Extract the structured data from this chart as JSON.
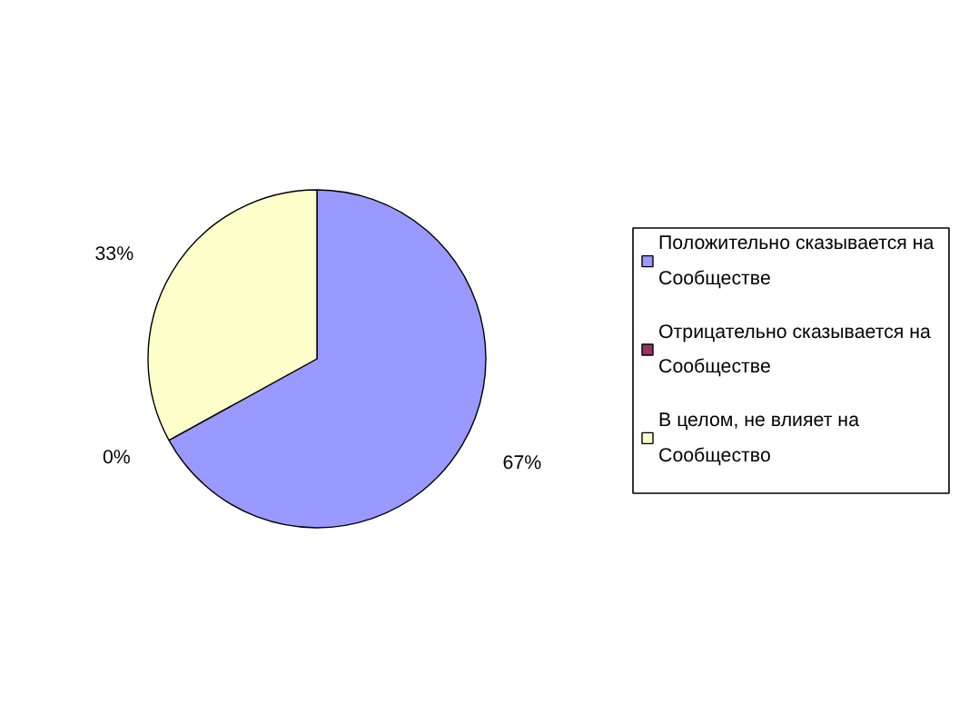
{
  "chart_data": {
    "type": "pie",
    "categories": [
      "Положительно сказывается на Сообществе",
      "Отрицательно сказывается на Сообществе",
      "В целом, не влияет на Сообщество"
    ],
    "values": [
      67,
      0,
      33
    ],
    "colors": [
      "#9999ff",
      "#993366",
      "#ffffcc"
    ],
    "value_labels": [
      "67%",
      "0%",
      "33%"
    ],
    "legend": "right"
  }
}
